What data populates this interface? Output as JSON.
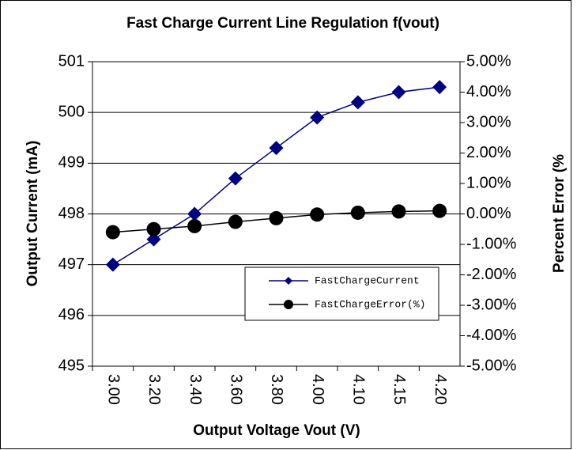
{
  "chart_data": {
    "type": "line",
    "title": "Fast Charge Current Line Regulation f(vout)",
    "xlabel": "Output Voltage Vout (V)",
    "ylabel": "Output Current (mA)",
    "y2label": "Percent Error (%",
    "categories": [
      "3.00",
      "3.20",
      "3.40",
      "3.60",
      "3.80",
      "4.00",
      "4.10",
      "4.15",
      "4.20"
    ],
    "series": [
      {
        "name": "FastChargeCurrent",
        "color": "#000080",
        "marker": "diamond",
        "values": [
          497,
          497.5,
          498,
          498.7,
          499.3,
          499.9,
          500.2,
          500.4,
          500.5
        ]
      },
      {
        "name": "FastChargeError(%)",
        "color": "#000000",
        "marker": "circle",
        "axis": "y2",
        "values": [
          -0.6,
          -0.5,
          -0.4,
          -0.26,
          -0.14,
          -0.02,
          0.04,
          0.08,
          0.1
        ]
      }
    ],
    "ylim": [
      495,
      501
    ],
    "yticks": [
      495,
      496,
      497,
      498,
      499,
      500,
      501
    ],
    "y2lim": [
      -5,
      5
    ],
    "y2ticks": [
      {
        "value": -5,
        "label": "-5.00%"
      },
      {
        "value": -4,
        "label": "-4.00%"
      },
      {
        "value": -3,
        "label": "-3.00%"
      },
      {
        "value": -2,
        "label": "-2.00%"
      },
      {
        "value": -1,
        "label": "-1.00%"
      },
      {
        "value": 0,
        "label": "0.00%"
      },
      {
        "value": 1,
        "label": "1.00%"
      },
      {
        "value": 2,
        "label": "2.00%"
      },
      {
        "value": 3,
        "label": "3.00%"
      },
      {
        "value": 4,
        "label": "4.00%"
      },
      {
        "value": 5,
        "label": "5.00%"
      }
    ],
    "grid": true,
    "legend": "lower right"
  }
}
